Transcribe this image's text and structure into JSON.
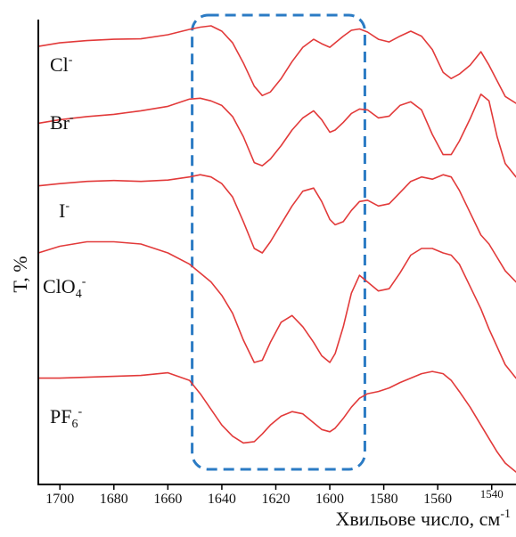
{
  "chart_data": {
    "type": "line",
    "title": "",
    "xlabel": {
      "text": "Хвильове число, см",
      "sup": "-1"
    },
    "ylabel": "T, %",
    "xlim": [
      1708,
      1531
    ],
    "x_reversed": true,
    "y_tick_labels": false,
    "grid": false,
    "legend": "none",
    "series_color": "#e23a3a",
    "highlight_box": {
      "x_range": [
        1651,
        1587
      ],
      "color": "#2b7bc4",
      "style": "dashed"
    },
    "x_ticks": [
      {
        "value": 1700,
        "label": "1700"
      },
      {
        "value": 1680,
        "label": "1680"
      },
      {
        "value": 1660,
        "label": "1660"
      },
      {
        "value": 1640,
        "label": "1640"
      },
      {
        "value": 1620,
        "label": "1620"
      },
      {
        "value": 1600,
        "label": "1600"
      },
      {
        "value": 1580,
        "label": "1580"
      },
      {
        "value": 1560,
        "label": "1560"
      },
      {
        "value": 1540,
        "label": "1540",
        "small": true
      }
    ],
    "series": [
      {
        "label": {
          "base": "Cl",
          "sup": "-",
          "sub": ""
        },
        "x": [
          1708,
          1700,
          1690,
          1680,
          1670,
          1660,
          1652,
          1648,
          1644,
          1640,
          1636,
          1632,
          1628,
          1625,
          1622,
          1618,
          1614,
          1610,
          1606,
          1603,
          1600,
          1598,
          1595,
          1592,
          1589,
          1586,
          1582,
          1578,
          1574,
          1570,
          1566,
          1562,
          1558,
          1555,
          1552,
          1548,
          1544,
          1541,
          1538,
          1535,
          1531
        ],
        "y": [
          91.2,
          92.0,
          92.5,
          92.8,
          92.9,
          93.8,
          95.0,
          95.5,
          95.8,
          94.6,
          92.0,
          87.5,
          82.3,
          80.2,
          81.0,
          84.0,
          87.8,
          91.0,
          92.8,
          91.8,
          91.0,
          92.0,
          93.5,
          94.8,
          95.1,
          94.4,
          92.8,
          92.2,
          93.5,
          94.6,
          93.5,
          90.5,
          85.4,
          84.0,
          85.0,
          87.0,
          90.0,
          87.0,
          83.5,
          80.0,
          78.5
        ]
      },
      {
        "label": {
          "base": "Br",
          "sup": "-",
          "sub": ""
        },
        "x": [
          1708,
          1700,
          1690,
          1680,
          1670,
          1660,
          1652,
          1648,
          1644,
          1640,
          1636,
          1632,
          1628,
          1625,
          1622,
          1618,
          1614,
          1610,
          1606,
          1603,
          1600,
          1598,
          1595,
          1592,
          1589,
          1586,
          1582,
          1578,
          1574,
          1570,
          1566,
          1562,
          1558,
          1555,
          1552,
          1548,
          1544,
          1541,
          1538,
          1535,
          1531
        ],
        "y": [
          74.0,
          74.8,
          75.5,
          76.0,
          76.8,
          77.8,
          79.4,
          79.6,
          79.0,
          78.0,
          75.5,
          71.0,
          65.2,
          64.5,
          66.0,
          69.0,
          72.5,
          75.2,
          76.8,
          74.8,
          72.0,
          72.5,
          74.2,
          76.2,
          77.2,
          77.0,
          75.2,
          75.6,
          78.0,
          78.8,
          77.0,
          71.5,
          67.0,
          67.0,
          70.0,
          75.0,
          80.5,
          79.0,
          71.0,
          65.0,
          62.0
        ]
      },
      {
        "label": {
          "base": "I",
          "sup": "-",
          "sub": ""
        },
        "x": [
          1708,
          1700,
          1690,
          1680,
          1670,
          1660,
          1652,
          1648,
          1644,
          1640,
          1636,
          1632,
          1628,
          1625,
          1622,
          1618,
          1614,
          1610,
          1606,
          1603,
          1600,
          1598,
          1595,
          1592,
          1589,
          1586,
          1582,
          1578,
          1574,
          1570,
          1566,
          1562,
          1558,
          1555,
          1552,
          1548,
          1544,
          1541,
          1538,
          1535,
          1531
        ],
        "y": [
          60.0,
          60.5,
          61.0,
          61.2,
          61.0,
          61.3,
          62.0,
          62.5,
          62.0,
          60.5,
          57.5,
          52.0,
          46.0,
          45.0,
          47.5,
          51.5,
          55.5,
          58.8,
          59.5,
          56.5,
          52.5,
          51.3,
          52.0,
          54.5,
          56.5,
          56.8,
          55.5,
          56.0,
          58.5,
          61.0,
          62.0,
          61.5,
          62.5,
          62.0,
          59.0,
          54.0,
          49.0,
          47.0,
          44.0,
          41.0,
          38.5
        ]
      },
      {
        "label": {
          "base": "ClO",
          "sup": "-",
          "sub": "4"
        },
        "x": [
          1708,
          1700,
          1690,
          1680,
          1670,
          1660,
          1652,
          1648,
          1644,
          1640,
          1636,
          1632,
          1628,
          1625,
          1622,
          1618,
          1614,
          1610,
          1606,
          1603,
          1600,
          1598,
          1595,
          1592,
          1589,
          1586,
          1582,
          1578,
          1574,
          1570,
          1566,
          1562,
          1558,
          1555,
          1552,
          1548,
          1544,
          1541,
          1538,
          1535,
          1531
        ],
        "y": [
          45.0,
          46.5,
          47.5,
          47.5,
          47.0,
          45.0,
          42.5,
          40.5,
          38.5,
          35.5,
          31.5,
          25.5,
          20.5,
          21.0,
          25.0,
          29.5,
          31.0,
          28.5,
          25.0,
          22.0,
          20.5,
          22.5,
          28.5,
          36.0,
          40.0,
          38.5,
          36.5,
          37.0,
          40.5,
          44.5,
          46.0,
          46.0,
          45.0,
          44.5,
          42.5,
          37.5,
          32.5,
          28.0,
          24.0,
          20.0,
          17.0
        ]
      },
      {
        "label": {
          "base": "PF",
          "sup": "-",
          "sub": "6"
        },
        "x": [
          1708,
          1700,
          1690,
          1680,
          1670,
          1660,
          1652,
          1648,
          1644,
          1640,
          1636,
          1632,
          1628,
          1625,
          1622,
          1618,
          1614,
          1610,
          1606,
          1603,
          1600,
          1598,
          1595,
          1592,
          1589,
          1586,
          1582,
          1578,
          1574,
          1570,
          1566,
          1562,
          1558,
          1555,
          1552,
          1548,
          1544,
          1541,
          1538,
          1535,
          1531
        ],
        "y": [
          17.0,
          17.0,
          17.2,
          17.4,
          17.6,
          18.2,
          16.5,
          13.5,
          10.0,
          6.5,
          4.0,
          2.5,
          2.8,
          4.5,
          6.5,
          8.5,
          9.5,
          9.0,
          7.0,
          5.5,
          5.0,
          5.8,
          8.0,
          10.5,
          12.5,
          13.5,
          14.0,
          14.8,
          16.0,
          17.0,
          18.0,
          18.5,
          18.0,
          16.5,
          14.0,
          10.5,
          6.5,
          3.5,
          0.5,
          -2.0,
          -4.0
        ]
      }
    ]
  }
}
